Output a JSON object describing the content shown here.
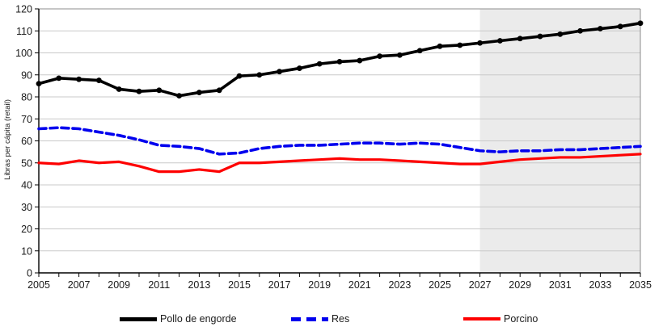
{
  "chart_data": {
    "type": "line",
    "title": "",
    "xlabel": "",
    "ylabel": "Libras per cápita (retail)",
    "ylim": [
      0,
      120
    ],
    "ytick_step": 10,
    "xtick_every": 2,
    "grid": "horizontal",
    "legend_position": "bottom",
    "forecast_shade_start": 2027,
    "shade_color": "#ebebeb",
    "grid_color": "#c9c9c9",
    "axis_color": "#000000",
    "border_color": "#8c8c8c",
    "tick_text_color": "#1a1a1a",
    "x": [
      2005,
      2006,
      2007,
      2008,
      2009,
      2010,
      2011,
      2012,
      2013,
      2014,
      2015,
      2016,
      2017,
      2018,
      2019,
      2020,
      2021,
      2022,
      2023,
      2024,
      2025,
      2026,
      2027,
      2028,
      2029,
      2030,
      2031,
      2032,
      2033,
      2034,
      2035
    ],
    "series": [
      {
        "name": "Pollo de engorde",
        "color": "#000000",
        "style": "solid",
        "marker": "circle",
        "values": [
          86,
          88.5,
          88,
          87.5,
          83.5,
          82.5,
          83,
          80.5,
          82,
          83,
          89.5,
          90,
          91.5,
          93,
          95,
          96,
          96.5,
          98.5,
          99,
          101,
          103,
          103.5,
          104.5,
          105.5,
          106.5,
          107.5,
          108.5,
          110,
          111,
          112,
          113.5
        ]
      },
      {
        "name": "Res",
        "color": "#0000ee",
        "style": "dashed",
        "marker": "none",
        "values": [
          65.5,
          66,
          65.5,
          64,
          62.5,
          60.5,
          58,
          57.5,
          56.5,
          54,
          54.5,
          56.5,
          57.5,
          58,
          58,
          58.5,
          59,
          59,
          58.5,
          59,
          58.5,
          57,
          55.5,
          55,
          55.5,
          55.5,
          56,
          56,
          56.5,
          57,
          57.5
        ]
      },
      {
        "name": "Porcino",
        "color": "#fe0000",
        "style": "solid",
        "marker": "none",
        "values": [
          50,
          49.5,
          51,
          50,
          50.5,
          48.5,
          46,
          46,
          47,
          46,
          50,
          50,
          50.5,
          51,
          51.5,
          52,
          51.5,
          51.5,
          51,
          50.5,
          50,
          49.5,
          49.5,
          50.5,
          51.5,
          52,
          52.5,
          52.5,
          53,
          53.5,
          54
        ]
      }
    ]
  }
}
